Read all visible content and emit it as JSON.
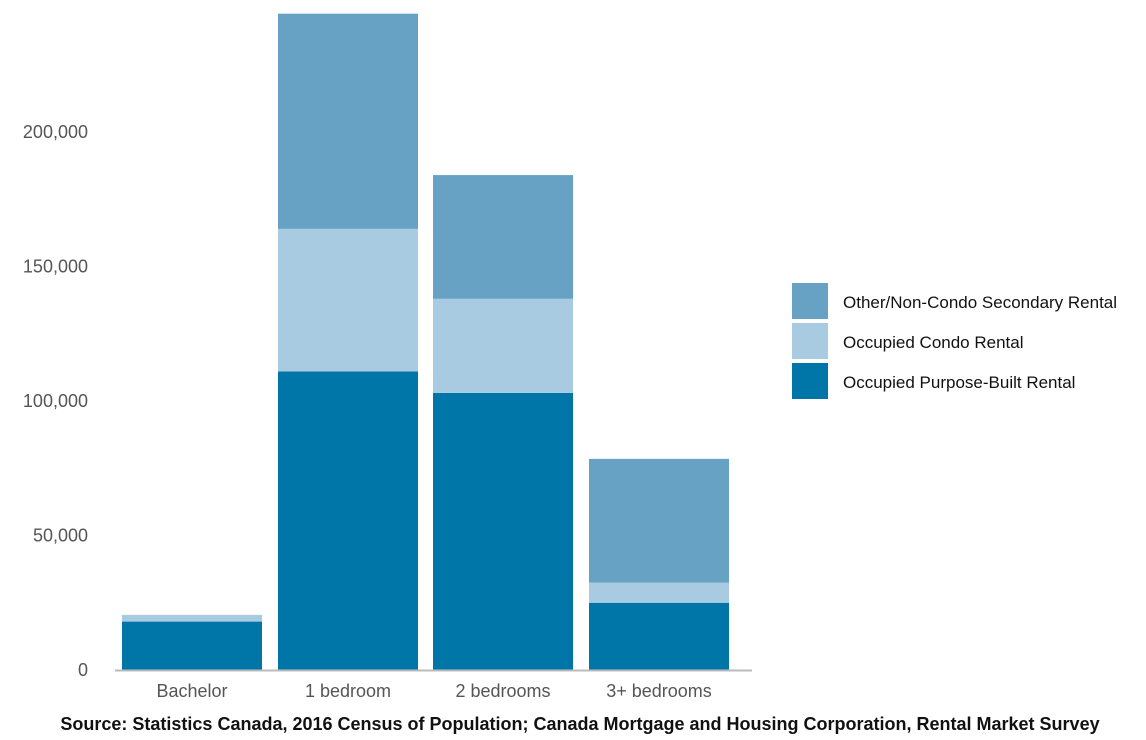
{
  "chart_data": {
    "type": "bar",
    "stacked": true,
    "categories": [
      "Bachelor",
      "1 bedroom",
      "2 bedrooms",
      "3+ bedrooms"
    ],
    "series": [
      {
        "name": "Occupied Purpose-Built Rental",
        "color": "#0076a8",
        "values": [
          18000,
          111000,
          103000,
          25000
        ]
      },
      {
        "name": "Occupied Condo Rental",
        "color": "#a9cbe1",
        "values": [
          2500,
          53000,
          35000,
          7500
        ]
      },
      {
        "name": "Other/Non-Condo Secondary Rental",
        "color": "#67a2c5",
        "values": [
          0,
          80000,
          46000,
          46000
        ]
      }
    ],
    "y_ticks": [
      0,
      50000,
      100000,
      150000,
      200000
    ],
    "y_tick_labels": [
      "0",
      "50,000",
      "100,000",
      "150,000",
      "200,000"
    ],
    "ylim": [
      0,
      245000
    ],
    "grid": false,
    "legend_position": "right",
    "legend_order": [
      "Other/Non-Condo Secondary Rental",
      "Occupied Condo Rental",
      "Occupied Purpose-Built Rental"
    ],
    "source": "Source: Statistics Canada, 2016 Census of Population; Canada Mortgage and Housing Corporation, Rental Market Survey"
  }
}
